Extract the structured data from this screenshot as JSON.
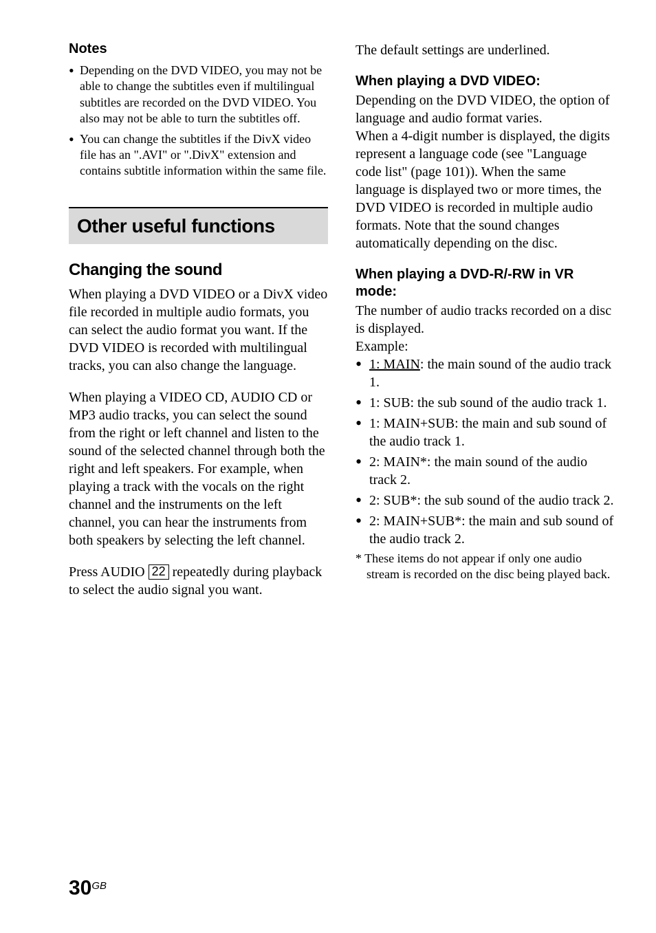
{
  "left": {
    "notes_heading": "Notes",
    "notes": [
      "Depending on the DVD VIDEO, you may not be able to change the subtitles even if multilingual subtitles are recorded on the DVD VIDEO. You also may not be able to turn the subtitles off.",
      "You can change the subtitles if the DivX video file has an \".AVI\" or \".DivX\" extension and contains subtitle information within the same file."
    ],
    "section_title": "Other useful functions",
    "sub_title": "Changing the sound",
    "para1": "When playing a DVD VIDEO or a DivX video file recorded in multiple audio formats, you can select the audio format you want. If the DVD VIDEO is recorded with multilingual tracks, you can also change the language.",
    "para2": "When playing a VIDEO CD, AUDIO CD or MP3 audio tracks, you can select the sound from the right or left channel and listen to the sound of the selected channel through both the right and left speakers. For example, when playing a track with the vocals on the right channel and the instruments on the left channel, you can hear the instruments from both speakers by selecting the left channel.",
    "para3_a": "Press AUDIO ",
    "para3_num": "22",
    "para3_b": " repeatedly during playback to select the audio signal you want."
  },
  "right": {
    "intro": "The default settings are underlined.",
    "h1": "When playing a DVD VIDEO:",
    "p1": "Depending on the DVD VIDEO, the option of language and audio format varies.",
    "p2": "When a 4-digit number is displayed, the digits represent a language code (see \"Language code list\" (page 101)). When the same language is displayed two or more times, the DVD VIDEO is recorded in multiple audio formats. Note that the sound changes automatically depending on the disc.",
    "h2": "When playing a DVD-R/-RW in VR mode:",
    "p3": "The number of audio tracks recorded on a disc is displayed.",
    "example_label": "Example:",
    "items": [
      {
        "u": "1: MAIN",
        "rest": ": the main sound of the audio track 1."
      },
      {
        "u": "",
        "rest": "1: SUB: the sub sound of the audio track 1."
      },
      {
        "u": "",
        "rest": "1: MAIN+SUB: the main and sub sound of the audio track 1."
      },
      {
        "u": "",
        "rest": "2: MAIN*: the main sound of the audio track 2."
      },
      {
        "u": "",
        "rest": "2: SUB*: the sub sound of the audio track 2."
      },
      {
        "u": "",
        "rest": "2: MAIN+SUB*: the main and sub sound of the audio track 2."
      }
    ],
    "footnote": "*  These items do not appear if only one audio stream is recorded on the disc being played back."
  },
  "page": {
    "num": "30",
    "suffix": "GB"
  }
}
